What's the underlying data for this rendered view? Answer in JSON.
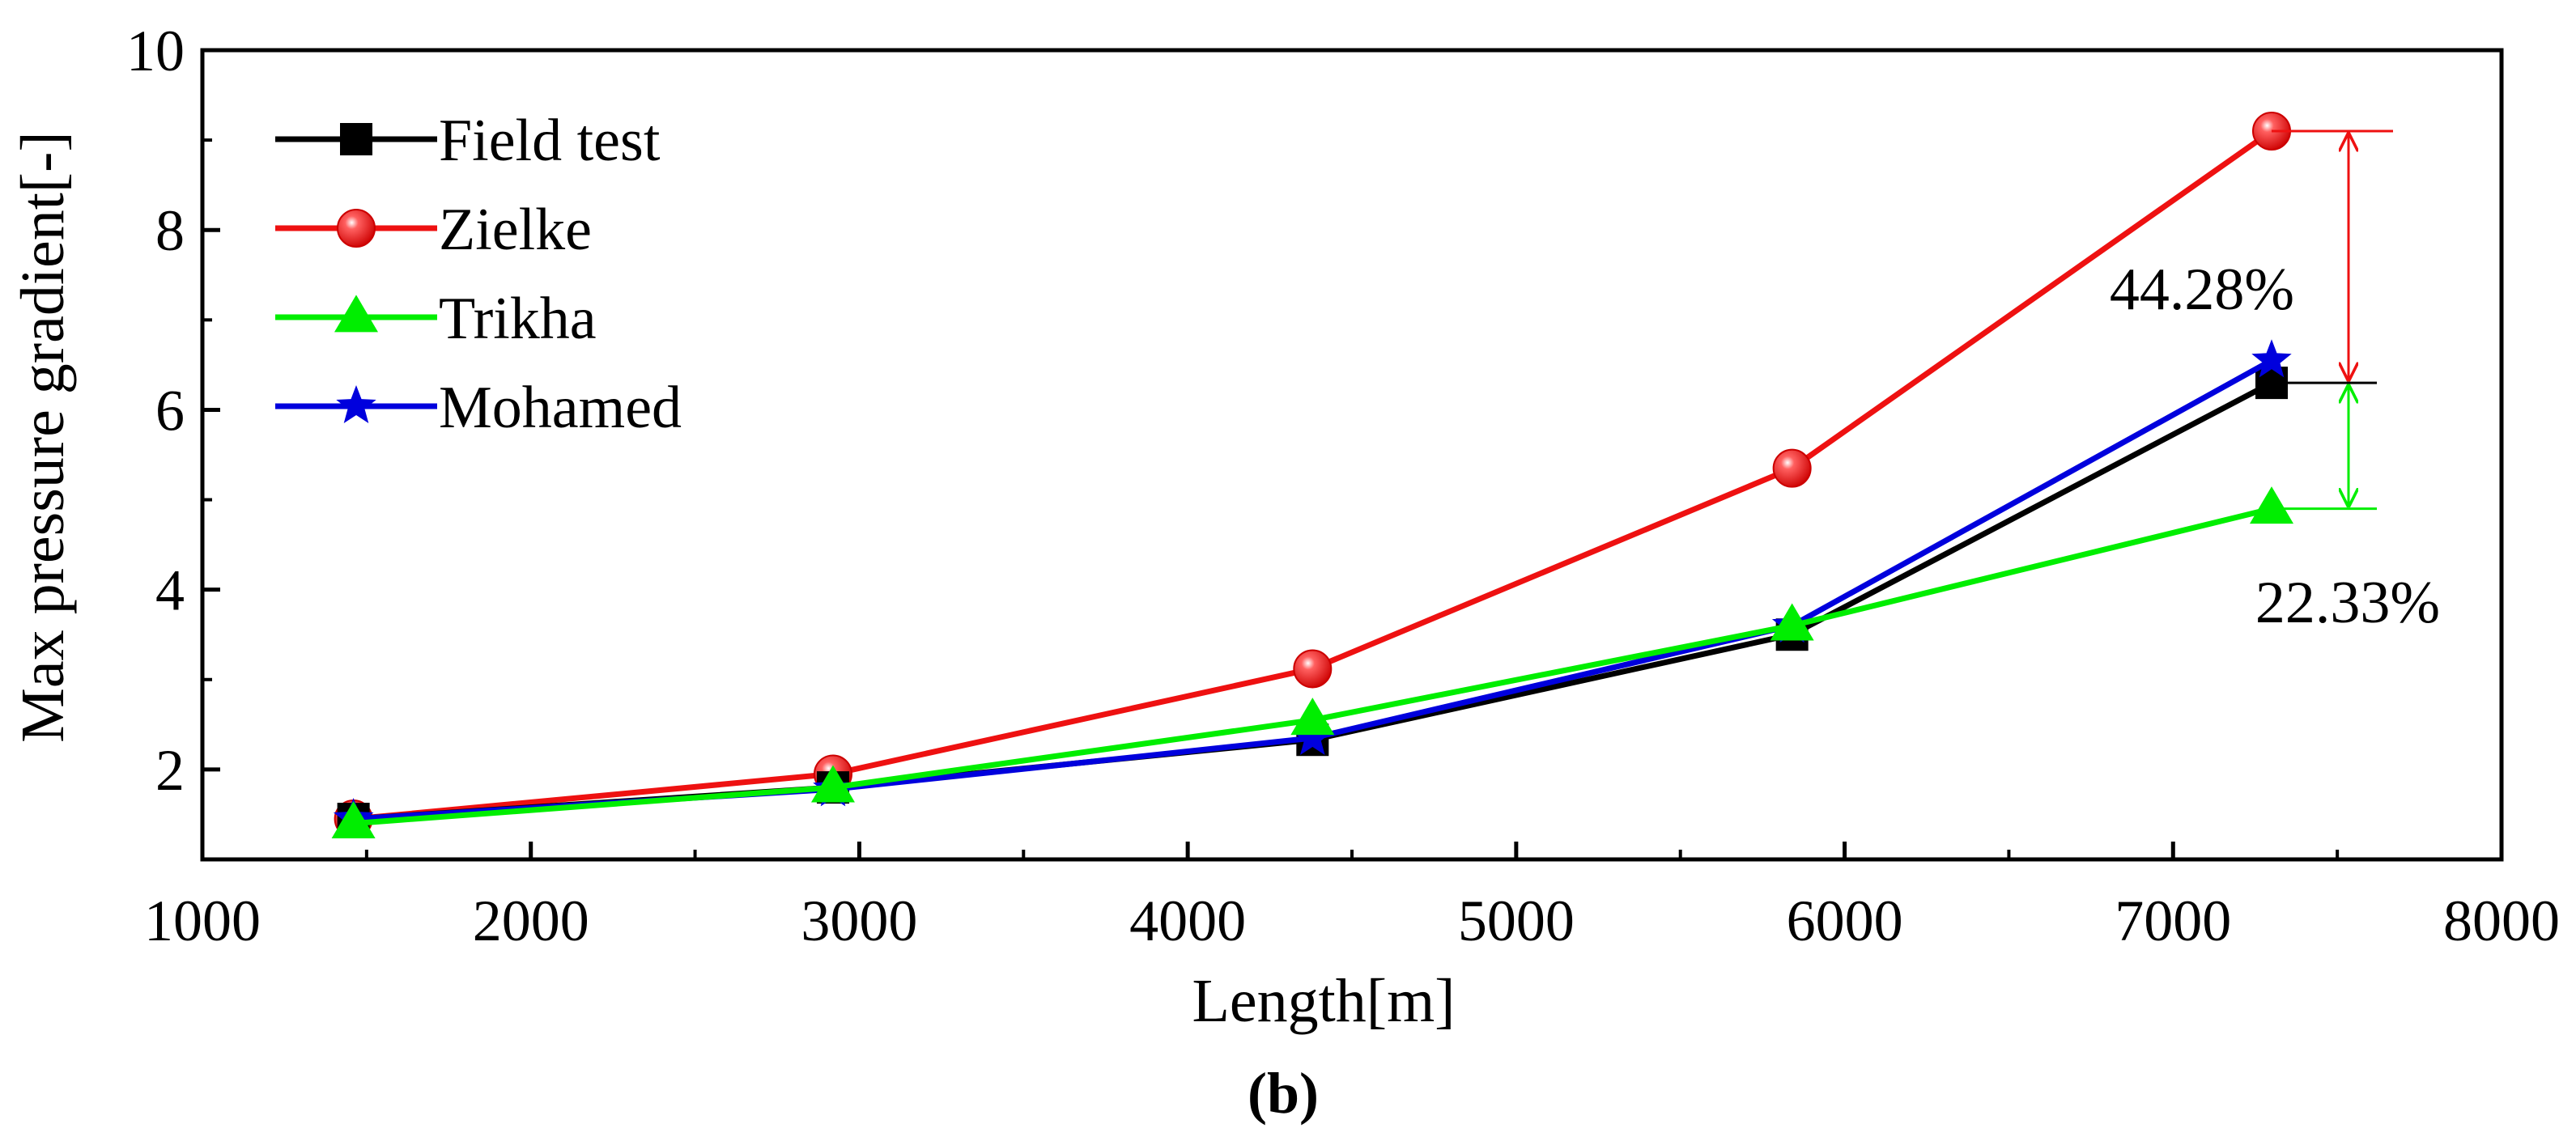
{
  "chart_data": {
    "type": "line",
    "xlabel": "Length[m]",
    "ylabel": "Max pressure gradient[-]",
    "xlim": [
      1000,
      8000
    ],
    "ylim": [
      1,
      10
    ],
    "xticks": [
      1000,
      2000,
      3000,
      4000,
      5000,
      6000,
      7000,
      8000
    ],
    "yticks": [
      2,
      4,
      6,
      8,
      10
    ],
    "grid": false,
    "legend_position": "top-left",
    "x": [
      1460,
      2920,
      4380,
      5840,
      7300
    ],
    "series": [
      {
        "name": "Field test",
        "color": "#000000",
        "marker": "square",
        "values": [
          1.45,
          1.8,
          2.33,
          3.5,
          6.3
        ]
      },
      {
        "name": "Zielke",
        "color": "#ee1111",
        "marker": "circle",
        "values": [
          1.45,
          1.95,
          3.12,
          5.35,
          9.1
        ]
      },
      {
        "name": "Trikha",
        "color": "#00ee00",
        "marker": "triangle",
        "values": [
          1.4,
          1.8,
          2.55,
          3.6,
          4.9
        ]
      },
      {
        "name": "Mohamed",
        "color": "#0000dd",
        "marker": "star",
        "values": [
          1.45,
          1.78,
          2.35,
          3.6,
          6.55
        ]
      }
    ],
    "annotations": [
      {
        "text": "44.28%",
        "from_value": 9.1,
        "to_value": 6.3,
        "color": "#ee1111"
      },
      {
        "text": "22.33%",
        "from_value": 6.3,
        "to_value": 4.9,
        "color": "#00ee00"
      }
    ],
    "caption": "(b)"
  }
}
